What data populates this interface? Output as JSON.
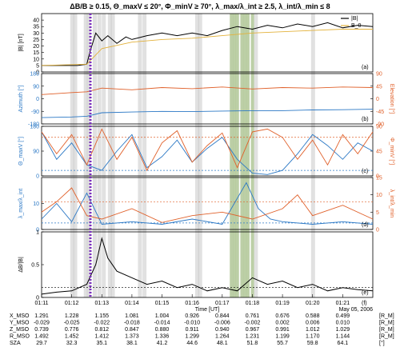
{
  "title": "ΔB/B ≥ 0.15, Θ_maxV ≤ 20°, Φ_minV ≥ 70°, λ_max/λ_int ≥ 2.5, λ_int/λ_min ≤ 8",
  "colors": {
    "black": "#000000",
    "blue": "#2b78c5",
    "orange": "#e0602a",
    "yellow": "#e3b23c",
    "purple": "#7b2fbe",
    "gray_band": "#c8c8c8",
    "green_band": "#a6bf88"
  },
  "chart_data": [
    {
      "panel": "a",
      "type": "line",
      "ylabel": "|B| [nT]",
      "ylim": [
        0,
        45
      ],
      "yticks": [
        0,
        5,
        10,
        15,
        20,
        25,
        30,
        35,
        40
      ],
      "legend": [
        "|B|",
        "B_0"
      ],
      "legend_position": "top-right",
      "series": [
        {
          "name": "|B|",
          "color": "black",
          "x": [
            0,
            0.8,
            1.2,
            1.5,
            1.6,
            1.8,
            2.0,
            2.2,
            2.5,
            2.8,
            3.0,
            3.5,
            4,
            4.5,
            5,
            5.5,
            6,
            6.5,
            7,
            7.5,
            8,
            8.5,
            9,
            9.5,
            10,
            10.5,
            11
          ],
          "y": [
            5,
            5,
            5,
            6,
            15,
            30,
            24,
            28,
            22,
            27,
            25,
            28,
            30,
            28,
            30,
            28,
            32,
            35,
            33,
            36,
            34,
            37,
            35,
            38,
            34,
            36,
            35
          ]
        },
        {
          "name": "B_0",
          "color": "yellow",
          "x": [
            0,
            1.5,
            2,
            3,
            4,
            5,
            6,
            7,
            8,
            9,
            10,
            11
          ],
          "y": [
            5,
            6,
            18,
            23,
            25,
            26,
            28,
            30,
            31,
            32,
            33,
            33
          ]
        }
      ]
    },
    {
      "panel": "b",
      "type": "line",
      "ylabel_left": "Azimuth [°]",
      "ylabel_right": "Elevation [°]",
      "ylim_left": [
        -180,
        180
      ],
      "ylim_right": [
        -90,
        90
      ],
      "yticks_left": [
        -180,
        -90,
        0,
        90,
        180
      ],
      "yticks_right": [
        -90,
        -45,
        0,
        45,
        90
      ],
      "series": [
        {
          "name": "Azimuth",
          "axis": "left",
          "color": "blue",
          "x": [
            0,
            1,
            1.5,
            2,
            3,
            4,
            5,
            6,
            7,
            8,
            9,
            10,
            11
          ],
          "y": [
            -135,
            -130,
            -125,
            -100,
            -95,
            -90,
            -92,
            -88,
            -85,
            -85,
            -80,
            -78,
            -75
          ]
        },
        {
          "name": "Elevation",
          "axis": "right",
          "color": "orange",
          "x": [
            0,
            1,
            1.5,
            2,
            3,
            4,
            5,
            6,
            7,
            8,
            9,
            10,
            11
          ],
          "y": [
            15,
            22,
            25,
            38,
            32,
            40,
            36,
            42,
            35,
            40,
            38,
            42,
            40
          ]
        }
      ]
    },
    {
      "panel": "c",
      "type": "line",
      "ylabel_left": "Θ_maxV [°]",
      "ylabel_right": "Φ_minV [°]",
      "ylim_left": [
        0,
        180
      ],
      "ylim_right": [
        0,
        90
      ],
      "yticks_left": [
        0,
        90,
        180
      ],
      "yticks_right": [
        0,
        45,
        90
      ],
      "threshold_left": 20,
      "threshold_right": 70,
      "series": [
        {
          "name": "Θ_maxV",
          "axis": "left",
          "color": "blue",
          "x": [
            0,
            0.5,
            1,
            1.5,
            2,
            2.5,
            3,
            3.5,
            4,
            4.5,
            5,
            5.5,
            6,
            6.5,
            7,
            7.5,
            8,
            8.5,
            9,
            9.5,
            10,
            10.5,
            11
          ],
          "y": [
            160,
            60,
            120,
            40,
            20,
            90,
            150,
            30,
            70,
            130,
            50,
            100,
            140,
            60,
            10,
            5,
            20,
            80,
            150,
            110,
            60,
            120,
            90
          ]
        },
        {
          "name": "Φ_minV",
          "axis": "right",
          "color": "orange",
          "x": [
            0,
            0.5,
            1,
            1.5,
            2,
            2.5,
            3,
            3.5,
            4,
            4.5,
            5,
            5.5,
            6,
            6.5,
            7,
            7.5,
            8,
            8.5,
            9,
            9.5,
            10,
            10.5,
            11
          ],
          "y": [
            80,
            40,
            75,
            20,
            85,
            30,
            70,
            10,
            60,
            82,
            25,
            55,
            78,
            15,
            80,
            85,
            70,
            30,
            65,
            20,
            75,
            40,
            80
          ]
        }
      ]
    },
    {
      "panel": "d",
      "type": "line",
      "ylabel_left": "λ_max/λ_int",
      "ylabel_right": "λ_int/λ_min",
      "ylim_left": [
        0,
        20
      ],
      "ylim_right": [
        0,
        15
      ],
      "yticks_left": [
        0,
        10
      ],
      "yticks_right": [
        0,
        5,
        10,
        15
      ],
      "threshold_left": 2.5,
      "threshold_right": 8,
      "series": [
        {
          "name": "λ_max/λ_int",
          "axis": "left",
          "color": "blue",
          "x": [
            0,
            0.5,
            1,
            1.5,
            2,
            3,
            4,
            5,
            6,
            6.8,
            7.2,
            7.6,
            8,
            9,
            10,
            11
          ],
          "y": [
            4,
            10,
            3,
            14,
            2,
            3,
            2,
            4,
            2,
            18,
            8,
            4,
            3,
            2,
            3,
            2
          ]
        },
        {
          "name": "λ_int/λ_min",
          "axis": "right",
          "color": "orange",
          "x": [
            0,
            0.5,
            1,
            1.5,
            2,
            3,
            4,
            5,
            6,
            7,
            8,
            8.5,
            9,
            10,
            11
          ],
          "y": [
            5,
            8,
            12,
            4,
            3,
            6,
            2,
            4,
            5,
            3,
            6,
            10,
            4,
            7,
            3
          ]
        }
      ]
    },
    {
      "panel": "e",
      "type": "line",
      "ylabel": "ΔB/|B|",
      "ylim": [
        0,
        1
      ],
      "yticks": [
        0,
        0.5,
        1
      ],
      "threshold": 0.15,
      "series": [
        {
          "name": "ΔB/|B|",
          "color": "black",
          "x": [
            0,
            0.5,
            1,
            1.5,
            1.8,
            2,
            2.2,
            2.5,
            3,
            3.5,
            4,
            4.5,
            5,
            5.5,
            6,
            6.5,
            7,
            7.5,
            8,
            8.5,
            9,
            9.5,
            10,
            10.5,
            11
          ],
          "y": [
            0.05,
            0.08,
            0.1,
            0.2,
            0.5,
            0.9,
            0.6,
            0.4,
            0.3,
            0.2,
            0.25,
            0.15,
            0.2,
            0.1,
            0.15,
            0.1,
            0.3,
            0.2,
            0.25,
            0.15,
            0.2,
            0.1,
            0.15,
            0.12,
            0.1
          ]
        }
      ]
    }
  ],
  "panel_labels": [
    "(a)",
    "(b)",
    "(c)",
    "(d)",
    "(e)",
    "(f)"
  ],
  "xticks": [
    "01:11",
    "01:12",
    "01:13",
    "01:14",
    "01:15",
    "01:16",
    "01:17",
    "01:18",
    "01:19",
    "01:20",
    "01:21"
  ],
  "xaxis_label": "Time [UT]",
  "date": "May 05, 2006",
  "ephemeris": {
    "labels": [
      "X_MSO",
      "Y_MSO",
      "Z_MSO",
      "R_MSO",
      "SZA"
    ],
    "units": [
      "[R_M]",
      "[R_M]",
      "[R_M]",
      "[R_M]",
      "[°]"
    ],
    "rows": [
      [
        "1.291",
        "1.228",
        "1.155",
        "1.081",
        "1.004",
        "0.926",
        "0.844",
        "0.761",
        "0.676",
        "0.588",
        "0.499"
      ],
      [
        "-0.029",
        "-0.025",
        "-0.022",
        "-0.018",
        "-0.014",
        "-0.010",
        "-0.006",
        "-0.002",
        "0.002",
        "0.006",
        "0.010"
      ],
      [
        "0.739",
        "0.776",
        "0.812",
        "0.847",
        "0.880",
        "0.911",
        "0.940",
        "0.967",
        "0.991",
        "1.012",
        "1.029"
      ],
      [
        "1.492",
        "1.452",
        "1.412",
        "1.373",
        "1.336",
        "1.299",
        "1.264",
        "1.231",
        "1.199",
        "1.170",
        "1.144"
      ],
      [
        "29.7",
        "32.3",
        "35.1",
        "38.1",
        "41.2",
        "44.6",
        "48.1",
        "51.8",
        "55.7",
        "59.8",
        "64.1"
      ]
    ]
  }
}
